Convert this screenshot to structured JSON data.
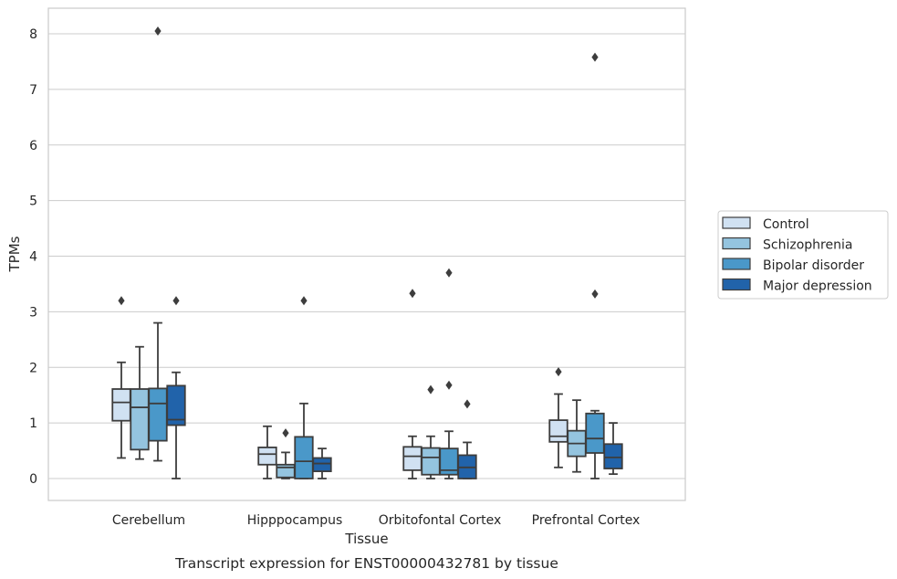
{
  "chart_data": {
    "type": "box",
    "caption": "Transcript expression for ENST00000432781 by tissue",
    "xlabel": "Tissue",
    "ylabel": "TPMs",
    "ylim": [
      -0.4,
      8.45
    ],
    "yticks": [
      0,
      1,
      2,
      3,
      4,
      5,
      6,
      7,
      8
    ],
    "grid": true,
    "legend_position": "right",
    "categories": [
      "Cerebellum",
      "Hipppocampus",
      "Orbitofontal Cortex",
      "Prefrontal Cortex"
    ],
    "series": [
      {
        "name": "Control",
        "color": "#d0e1f2",
        "boxes": [
          {
            "whislo": 0.37,
            "q1": 1.04,
            "med": 1.37,
            "q3": 1.61,
            "whishi": 2.09,
            "fliers": [
              3.2
            ]
          },
          {
            "whislo": 0.0,
            "q1": 0.25,
            "med": 0.44,
            "q3": 0.56,
            "whishi": 0.94,
            "fliers": []
          },
          {
            "whislo": 0.0,
            "q1": 0.15,
            "med": 0.4,
            "q3": 0.57,
            "whishi": 0.76,
            "fliers": [
              3.33
            ]
          },
          {
            "whislo": 0.2,
            "q1": 0.66,
            "med": 0.76,
            "q3": 1.05,
            "whishi": 1.52,
            "fliers": [
              1.92
            ]
          }
        ]
      },
      {
        "name": "Schizophrenia",
        "color": "#94c4df",
        "boxes": [
          {
            "whislo": 0.35,
            "q1": 0.52,
            "med": 1.28,
            "q3": 1.61,
            "whishi": 2.37,
            "fliers": []
          },
          {
            "whislo": 0.0,
            "q1": 0.02,
            "med": 0.2,
            "q3": 0.25,
            "whishi": 0.47,
            "fliers": [
              0.82
            ]
          },
          {
            "whislo": 0.0,
            "q1": 0.07,
            "med": 0.38,
            "q3": 0.55,
            "whishi": 0.76,
            "fliers": [
              1.6
            ]
          },
          {
            "whislo": 0.12,
            "q1": 0.4,
            "med": 0.63,
            "q3": 0.86,
            "whishi": 1.41,
            "fliers": []
          }
        ]
      },
      {
        "name": "Bipolar disorder",
        "color": "#4a98c9",
        "boxes": [
          {
            "whislo": 0.32,
            "q1": 0.68,
            "med": 1.35,
            "q3": 1.62,
            "whishi": 2.8,
            "fliers": [
              8.05
            ]
          },
          {
            "whislo": 0.0,
            "q1": 0.0,
            "med": 0.31,
            "q3": 0.75,
            "whishi": 1.35,
            "fliers": [
              3.2
            ]
          },
          {
            "whislo": 0.0,
            "q1": 0.07,
            "med": 0.15,
            "q3": 0.54,
            "whishi": 0.85,
            "fliers": [
              3.7,
              1.68
            ]
          },
          {
            "whislo": 0.0,
            "q1": 0.46,
            "med": 0.72,
            "q3": 1.17,
            "whishi": 1.22,
            "fliers": [
              7.58,
              3.32
            ]
          }
        ]
      },
      {
        "name": "Major depression",
        "color": "#2163aa",
        "boxes": [
          {
            "whislo": 0.0,
            "q1": 0.96,
            "med": 1.06,
            "q3": 1.67,
            "whishi": 1.91,
            "fliers": [
              3.2
            ]
          },
          {
            "whislo": 0.0,
            "q1": 0.13,
            "med": 0.27,
            "q3": 0.37,
            "whishi": 0.54,
            "fliers": []
          },
          {
            "whislo": 0.0,
            "q1": 0.0,
            "med": 0.2,
            "q3": 0.42,
            "whishi": 0.65,
            "fliers": [
              1.34
            ]
          },
          {
            "whislo": 0.08,
            "q1": 0.18,
            "med": 0.38,
            "q3": 0.62,
            "whishi": 1.0,
            "fliers": []
          }
        ]
      }
    ]
  }
}
